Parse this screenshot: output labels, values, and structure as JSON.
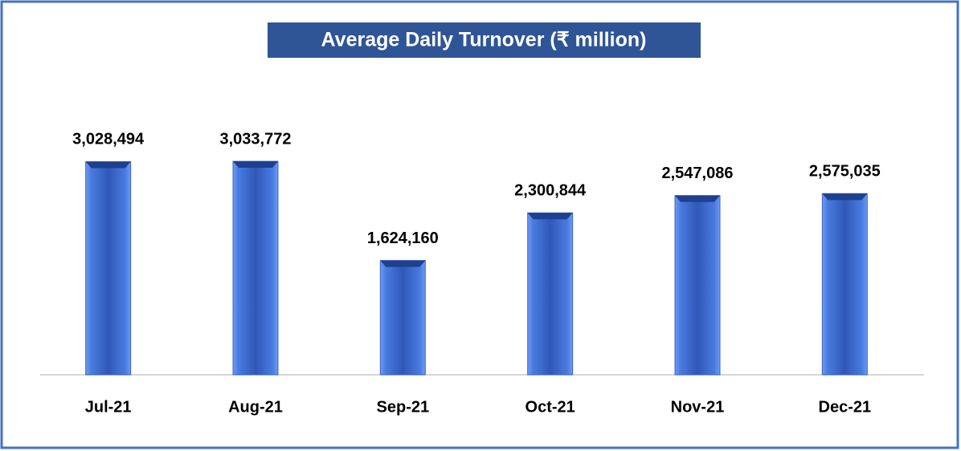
{
  "chart_data": {
    "type": "bar",
    "title": "Average Daily Turnover (₹ million)",
    "categories": [
      "Jul-21",
      "Aug-21",
      "Sep-21",
      "Oct-21",
      "Nov-21",
      "Dec-21"
    ],
    "values": [
      3028494,
      3033772,
      1624160,
      2300844,
      2547086,
      2575035
    ],
    "value_labels": [
      "3,028,494",
      "3,033,772",
      "1,624,160",
      "2,300,844",
      "2,547,086",
      "2,575,035"
    ],
    "color": "#3a63c8"
  }
}
